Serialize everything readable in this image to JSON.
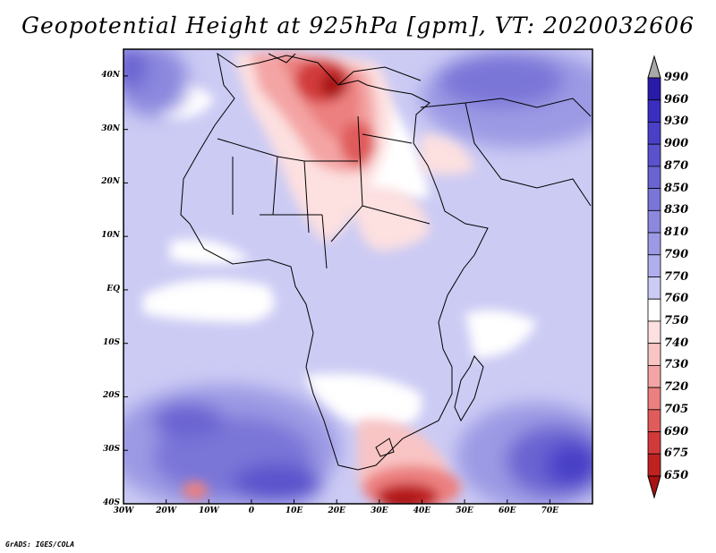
{
  "title": "Geopotential Height at 925hPa [gpm], VT: 2020032606",
  "footer": "GrADS: IGES/COLA",
  "chart_data": {
    "type": "heatmap",
    "variable": "Geopotential Height at 925hPa",
    "units": "gpm",
    "valid_time": "2020032606",
    "lon_range": [
      -30,
      80
    ],
    "lat_range": [
      -40,
      45
    ],
    "x_ticks": [
      "30W",
      "20W",
      "10W",
      "0",
      "10E",
      "20E",
      "30E",
      "40E",
      "50E",
      "60E",
      "70E"
    ],
    "y_ticks": [
      "40N",
      "30N",
      "20N",
      "10N",
      "EQ",
      "10S",
      "20S",
      "30S",
      "40S"
    ],
    "colorbar_levels": [
      "990",
      "960",
      "930",
      "900",
      "870",
      "850",
      "830",
      "810",
      "790",
      "770",
      "760",
      "750",
      "740",
      "730",
      "720",
      "705",
      "690",
      "675",
      "650"
    ],
    "colorbar_colors": [
      "#2a1aa8",
      "#3a2ec0",
      "#4a40c8",
      "#5a52cc",
      "#6a64d2",
      "#7a76d8",
      "#8b88de",
      "#9c9ae4",
      "#b0aeec",
      "#cccbf4",
      "#ffffff",
      "#fde0e0",
      "#f9c4c4",
      "#f4a4a4",
      "#ec8080",
      "#e05c5c",
      "#d23a3a",
      "#c02222",
      "#a81212"
    ],
    "features": [
      {
        "name": "low",
        "region": "Libya / central Mediterranean",
        "approx_value": 675
      },
      {
        "name": "low",
        "region": "south of South Africa",
        "approx_value": 675
      },
      {
        "name": "low",
        "region": "central Sahara / Chad",
        "approx_value": 730
      },
      {
        "name": "high",
        "region": "South Atlantic",
        "approx_value": 870
      },
      {
        "name": "high",
        "region": "southern Indian Ocean",
        "approx_value": 870
      },
      {
        "name": "high",
        "region": "Southwest Asia / Iran",
        "approx_value": 850
      },
      {
        "name": "high",
        "region": "North Atlantic off Morocco",
        "approx_value": 830
      }
    ]
  }
}
